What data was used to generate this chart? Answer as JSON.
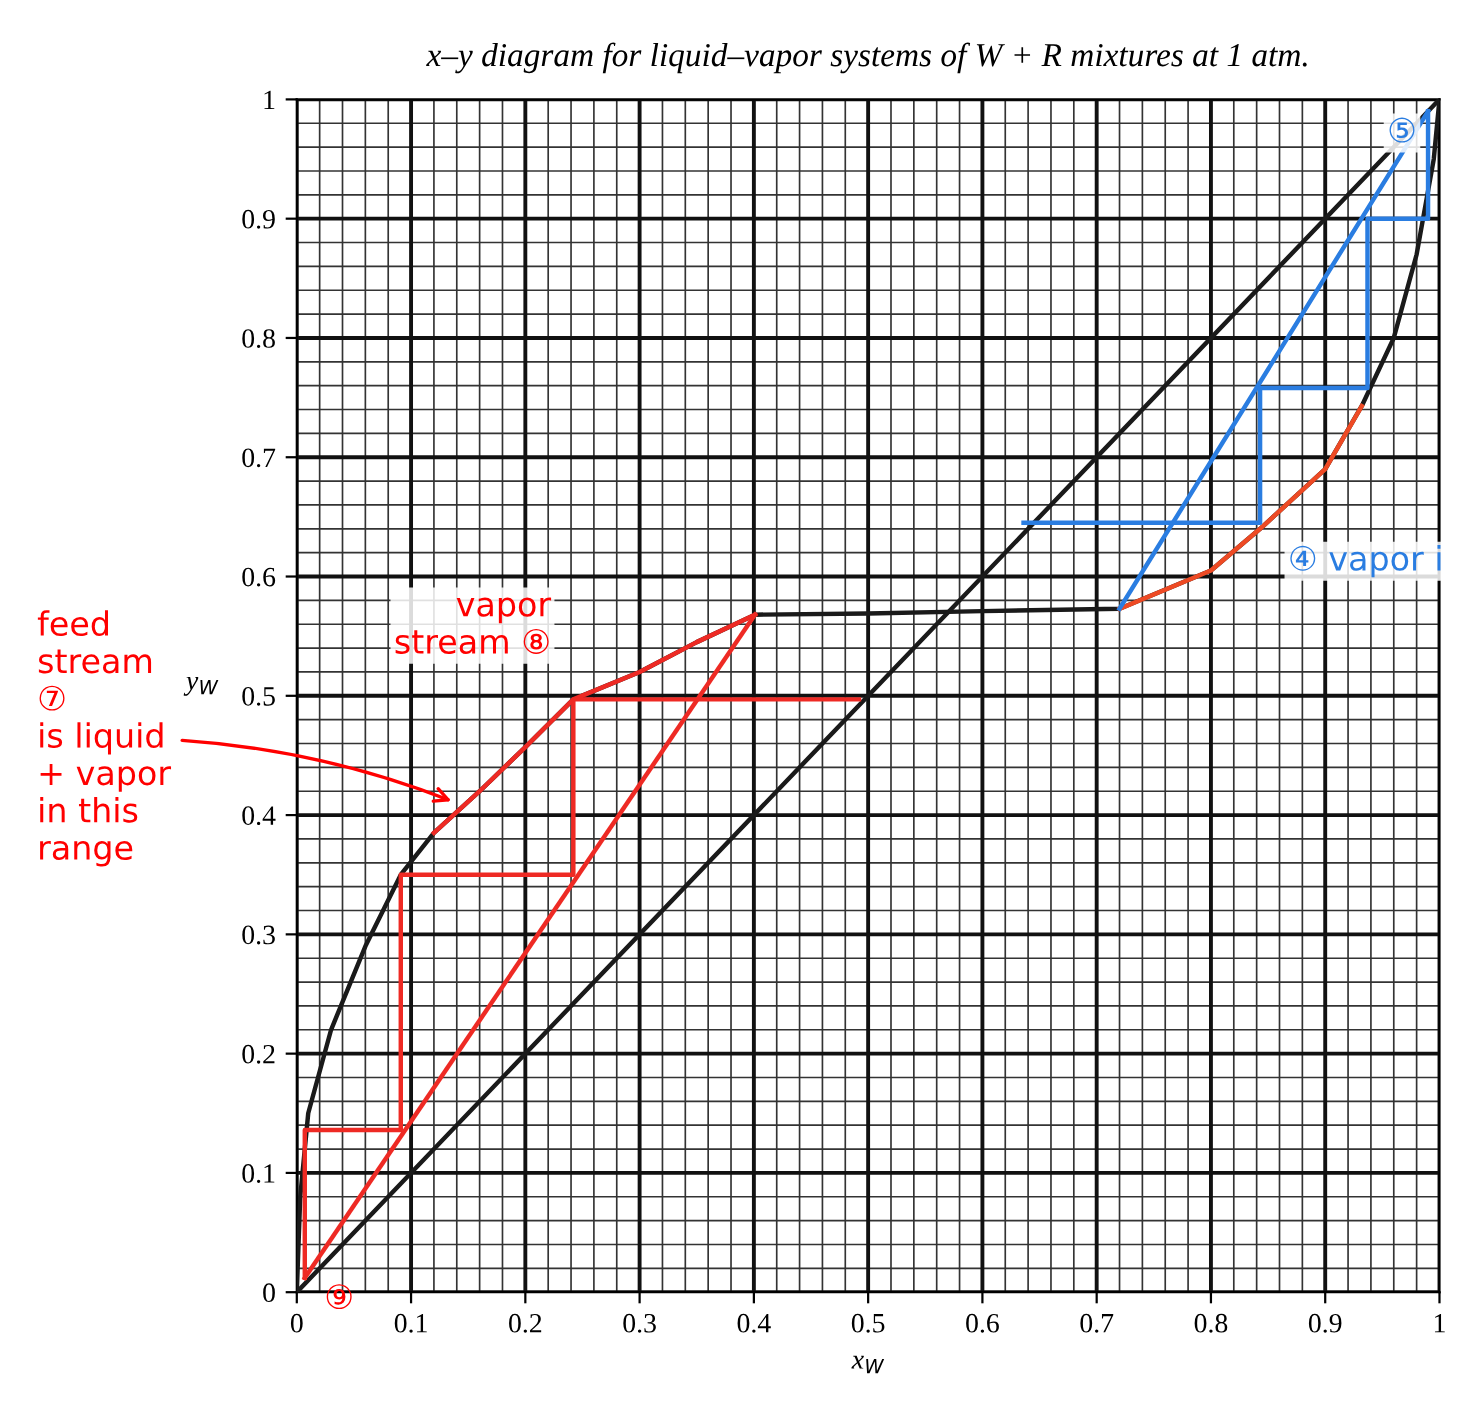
{
  "chart_data": {
    "type": "line",
    "title": "x–y diagram for liquid–vapor systems of W + R mixtures at 1 atm.",
    "xlabel": "x$_{W}$",
    "ylabel": "y$_{W}$",
    "xlim": [
      0,
      1
    ],
    "ylim": [
      0,
      1
    ],
    "xticks": [
      0,
      0.1,
      0.2,
      0.3,
      0.4,
      0.5,
      0.6,
      0.7,
      0.8,
      0.9,
      1
    ],
    "yticks": [
      0,
      0.1,
      0.2,
      0.3,
      0.4,
      0.5,
      0.6,
      0.7,
      0.8,
      0.9,
      1
    ],
    "grid": true,
    "series": [
      {
        "color": "#1a1a1a",
        "x": [
          0,
          0.003,
          0.01,
          0.03,
          0.06,
          0.091,
          0.12,
          0.16,
          0.2,
          0.242,
          0.3,
          0.35,
          0.401,
          0.5,
          0.6,
          0.72,
          0.8,
          0.843,
          0.9,
          0.932,
          0.96,
          0.98,
          0.995,
          1
        ],
        "values": [
          0,
          0.08,
          0.15,
          0.22,
          0.29,
          0.35,
          0.385,
          0.42,
          0.457,
          0.497,
          0.52,
          0.545,
          0.568,
          0.569,
          0.571,
          0.573,
          0.605,
          0.64,
          0.69,
          0.743,
          0.8,
          0.87,
          0.95,
          1
        ]
      },
      {
        "color": "#1a1a1a",
        "x": [
          0,
          1
        ],
        "values": [
          0,
          1
        ]
      },
      {
        "color": "#ee2a24",
        "x": [
          0.12,
          0.16,
          0.2,
          0.242,
          0.3,
          0.35,
          0.401
        ],
        "values": [
          0.385,
          0.42,
          0.457,
          0.497,
          0.52,
          0.545,
          0.568
        ]
      },
      {
        "color": "#ee2a24",
        "x": [
          0.007,
          0.401
        ],
        "values": [
          0.012,
          0.568
        ]
      },
      {
        "color": "#ee2a24",
        "x": [
          0.007,
          0.007,
          0.091,
          0.091,
          0.242,
          0.242,
          0.492
        ],
        "values": [
          0.012,
          0.136,
          0.136,
          0.35,
          0.35,
          0.497,
          0.497
        ]
      },
      {
        "color": "#ee4a24",
        "x": [
          0.72,
          0.8,
          0.843,
          0.9,
          0.932
        ],
        "values": [
          0.573,
          0.605,
          0.64,
          0.69,
          0.743
        ]
      },
      {
        "color": "#2a7de1",
        "x": [
          0.72,
          0.99
        ],
        "values": [
          0.573,
          0.99
        ]
      },
      {
        "color": "#2a7de1",
        "x": [
          0.636,
          0.843,
          0.843,
          0.937,
          0.937,
          0.99,
          0.99
        ],
        "values": [
          0.645,
          0.645,
          0.758,
          0.758,
          0.9,
          0.9,
          0.99
        ]
      }
    ],
    "annotations": [
      {
        "text": "vapor\nstream ⑧",
        "x": 0.242,
        "y": 0.497
      },
      {
        "text": "feed\nstream\n⑦\nis liquid\n+ vapor\nin this\nrange",
        "x": 0.14,
        "y": 0.41
      },
      {
        "text": "④ vapor i",
        "x": 0.843,
        "y": 0.645
      },
      {
        "text": "⑤",
        "x": 0.99,
        "y": 0.99
      },
      {
        "text": "⑨",
        "x": 0.007,
        "y": 0.012
      }
    ]
  }
}
